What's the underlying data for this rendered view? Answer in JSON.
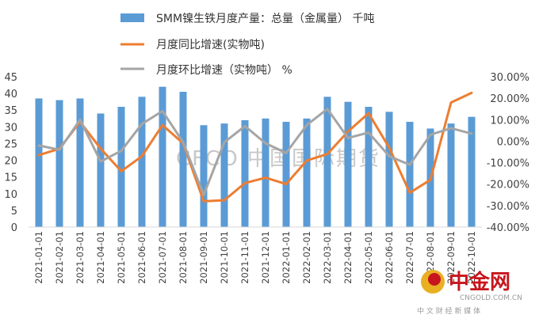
{
  "chart_data": {
    "type": "bar+line",
    "categories": [
      "2021-01-01",
      "2021-02-01",
      "2021-03-01",
      "2021-04-01",
      "2021-05-01",
      "2021-06-01",
      "2021-07-01",
      "2021-08-01",
      "2021-09-01",
      "2021-10-01",
      "2021-11-01",
      "2021-12-01",
      "2022-01-01",
      "2022-02-01",
      "2022-03-01",
      "2022-04-01",
      "2022-05-01",
      "2022-06-01",
      "2022-07-01",
      "2022-08-01",
      "2022-09-01",
      "2022-10-01"
    ],
    "series": [
      {
        "name": "SMM镍生铁月度产量：总量（金属量） 千吨",
        "type": "bar",
        "axis": "left",
        "color": "#5b9bd5",
        "values": [
          38.5,
          38.0,
          38.5,
          34.0,
          36.0,
          39.0,
          42.0,
          40.5,
          30.5,
          31.0,
          32.0,
          32.5,
          31.5,
          32.5,
          39.0,
          37.5,
          36.0,
          34.5,
          31.5,
          29.5,
          31.0,
          33.0
        ]
      },
      {
        "name": "月度同比增速(实物吨)",
        "type": "line",
        "axis": "right",
        "color": "#ed7d31",
        "values": [
          -6.5,
          -3.5,
          9.0,
          -3.5,
          -14.0,
          -7.0,
          7.5,
          -1.0,
          -28.0,
          -27.5,
          -19.5,
          -17.0,
          -20.0,
          -9.0,
          -6.0,
          4.5,
          13.0,
          -3.0,
          -24.0,
          -18.0,
          18.0,
          22.5
        ]
      },
      {
        "name": "月度环比增速（实物吨） %",
        "type": "line",
        "axis": "right",
        "color": "#a5a5a5",
        "values": [
          -2.0,
          -4.0,
          10.0,
          -9.5,
          -4.5,
          8.0,
          14.0,
          -0.5,
          -25.0,
          -0.5,
          7.0,
          -1.0,
          -5.5,
          7.5,
          15.0,
          1.5,
          4.0,
          -7.0,
          -11.0,
          3.0,
          6.0,
          3.5
        ]
      }
    ],
    "ylim_left": [
      0,
      45
    ],
    "yticks_left": [
      "0",
      "5",
      "10",
      "15",
      "20",
      "25",
      "30",
      "35",
      "40",
      "45"
    ],
    "ylim_right": [
      -40,
      30
    ],
    "yticks_right": [
      "-40.00%",
      "-30.00%",
      "-20.00%",
      "-10.00%",
      "0.00%",
      "10.00%",
      "20.00%",
      "30.00%"
    ],
    "legend_position": "top",
    "grid": false
  },
  "watermark": "CFCO 中国国际期货",
  "logo": {
    "name": "中金网",
    "url": "CNGOLD.COM.CN",
    "tagline": "中 文 财 经 新 媒 体",
    "icon": "cngold-logo-icon"
  }
}
